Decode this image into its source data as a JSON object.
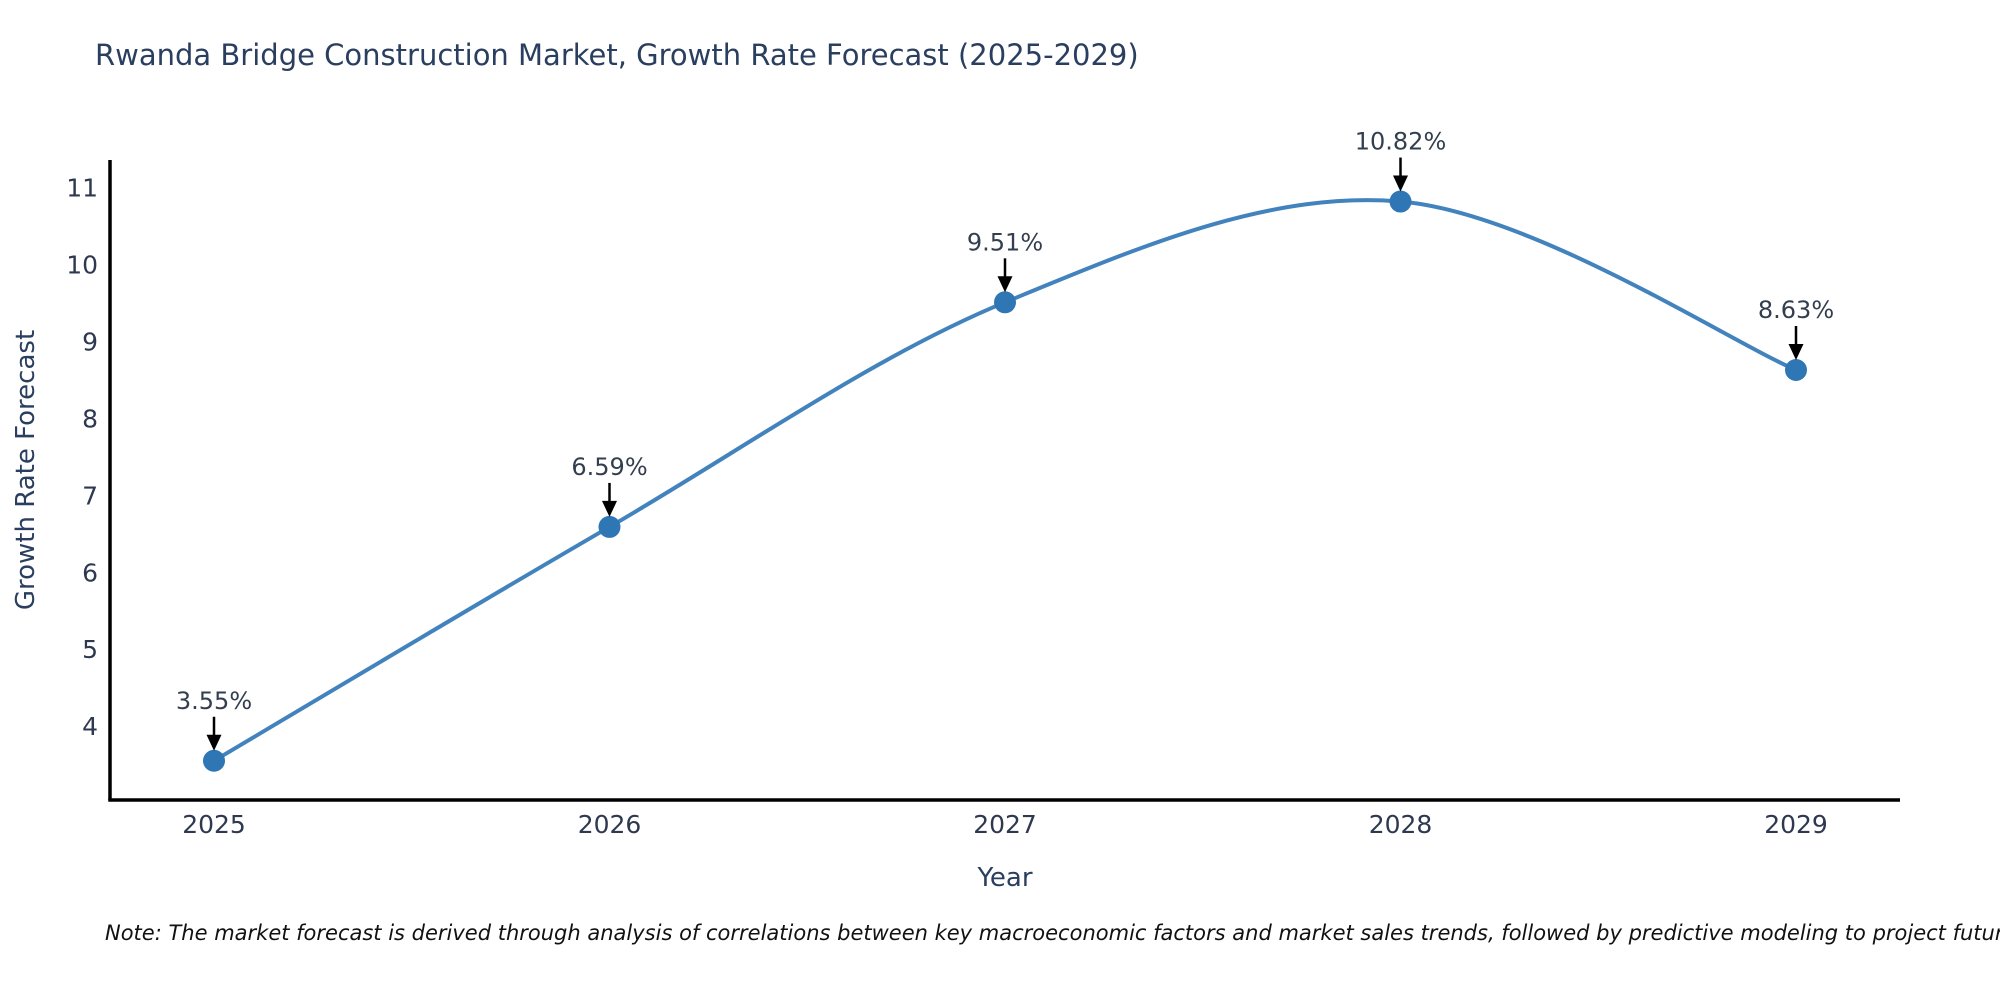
{
  "title": "Rwanda Bridge Construction Market, Growth Rate Forecast (2025-2029)",
  "note": "Note: The market forecast is derived through analysis of correlations between key macroeconomic factors and market sales trends, followed by predictive modeling to project future sales.",
  "chart_data": {
    "type": "line",
    "title": "Rwanda Bridge Construction Market, Growth Rate Forecast (2025-2029)",
    "xlabel": "Year",
    "ylabel": "Growth Rate Forecast",
    "categories": [
      "2025",
      "2026",
      "2027",
      "2028",
      "2029"
    ],
    "series": [
      {
        "name": "Growth Rate Forecast",
        "values": [
          3.55,
          6.59,
          9.51,
          10.82,
          8.63
        ]
      }
    ],
    "point_labels": [
      "3.55%",
      "6.59%",
      "9.51%",
      "10.82%",
      "8.63%"
    ],
    "yticks": [
      4,
      5,
      6,
      7,
      8,
      9,
      10,
      11
    ],
    "ylim": [
      3.04,
      11.36
    ],
    "line_shape": "spline",
    "grid": false,
    "legend_position": "none",
    "annotations_have_arrows": true,
    "colors": {
      "line": "#4383bd",
      "marker": "#2f76b5",
      "arrow": "#000000",
      "axis_line": "#000000",
      "title_text": "#2a3f5f",
      "tick_text": "#2e3850",
      "annotation_text": "#333f4f",
      "background": "#ffffff"
    }
  }
}
